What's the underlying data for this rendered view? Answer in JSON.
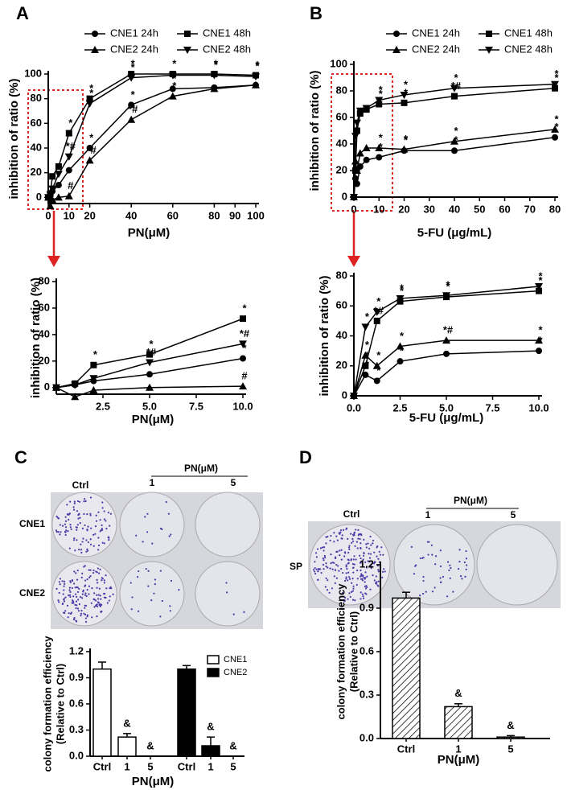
{
  "panels": {
    "a": "A",
    "b": "B",
    "c": "C",
    "d": "D"
  },
  "photos": {
    "c": {
      "treatment": "PN(μM)",
      "ctrl": "Ctrl",
      "dose1": "1",
      "dose2": "5",
      "rows": [
        "CNE1",
        "CNE2"
      ]
    },
    "d": {
      "treatment": "PN(μM)",
      "ctrl": "Ctrl",
      "dose1": "1",
      "dose2": "5",
      "rows": [
        "SP"
      ]
    }
  },
  "chart_data": [
    {
      "type": "line",
      "ylabel": "inhibition of ratio (%)",
      "xlabel": "PN(μM)",
      "legend": "top",
      "x": [
        0,
        1,
        2,
        5,
        10,
        20,
        40,
        60,
        80,
        100
      ],
      "xlim": [
        0,
        100
      ],
      "xticks": [
        0,
        10,
        20,
        40,
        60,
        80,
        90,
        100
      ],
      "ylim": [
        -5,
        100
      ],
      "yticks": [
        0,
        20,
        40,
        60,
        80,
        100
      ],
      "series": [
        {
          "name": "CNE1 24h",
          "color": "#000",
          "marker": "circle",
          "values": [
            0,
            2,
            5,
            10,
            22,
            40,
            75,
            88,
            89,
            91
          ],
          "point_labels": [
            null,
            null,
            null,
            null,
            null,
            "*",
            "*",
            "*",
            "*",
            null
          ]
        },
        {
          "name": "CNE1 48h",
          "color": "#000",
          "marker": "square",
          "values": [
            0,
            3,
            17,
            25,
            52,
            80,
            100,
            100,
            100,
            99
          ],
          "point_labels": [
            null,
            null,
            null,
            null,
            "*",
            "*",
            "*",
            "*",
            "*",
            "*"
          ]
        },
        {
          "name": "CNE2 24h",
          "color": "#000",
          "marker": "triangle",
          "values": [
            0,
            -7,
            -2,
            0,
            1,
            30,
            63,
            82,
            88,
            91
          ],
          "point_labels": [
            null,
            null,
            null,
            null,
            "#",
            "*#",
            "*#",
            "*",
            null,
            null
          ]
        },
        {
          "name": "CNE2 48h",
          "color": "#000",
          "marker": "triangle-down",
          "values": [
            0,
            2,
            7,
            19,
            33,
            76,
            97,
            99,
            99,
            98
          ],
          "point_labels": [
            null,
            null,
            null,
            null,
            "*#",
            "*",
            "*",
            null,
            "*",
            "*"
          ]
        }
      ]
    },
    {
      "type": "line",
      "ylabel": "inhibition of ratio (%)",
      "xlabel": "PN(μM)",
      "x": [
        0,
        1,
        2,
        5,
        10
      ],
      "xlim": [
        0,
        10
      ],
      "xticks": [
        2.5,
        {
          "value": 5,
          "label": "5.0"
        },
        7.5,
        {
          "value": 10,
          "label": "10.0"
        }
      ],
      "ylim": [
        -5,
        80
      ],
      "yticks": [
        0,
        20,
        40,
        60,
        80
      ],
      "series": [
        {
          "name": "CNE1 24h",
          "color": "#000",
          "marker": "circle",
          "values": [
            0,
            2,
            5,
            10,
            22
          ],
          "point_labels": [
            null,
            null,
            null,
            null,
            "*"
          ]
        },
        {
          "name": "CNE1 48h",
          "color": "#000",
          "marker": "square",
          "values": [
            0,
            3,
            17,
            25,
            52
          ],
          "point_labels": [
            null,
            null,
            "*",
            "*",
            "*"
          ]
        },
        {
          "name": "CNE2 24h",
          "color": "#000",
          "marker": "triangle",
          "values": [
            0,
            -7,
            -2,
            0,
            1
          ],
          "point_labels": [
            null,
            null,
            null,
            null,
            "#"
          ]
        },
        {
          "name": "CNE2 48h",
          "color": "#000",
          "marker": "triangle-down",
          "values": [
            0,
            2,
            7,
            19,
            33
          ],
          "point_labels": [
            null,
            null,
            null,
            "*#",
            "*#"
          ]
        }
      ]
    },
    {
      "type": "line",
      "ylabel": "inhibition of ratio (%)",
      "xlabel": "5-FU (μg/mL)",
      "legend": "top",
      "x": [
        0,
        0.625,
        1.25,
        2.5,
        5,
        10,
        20,
        40,
        80
      ],
      "xlim": [
        0,
        80
      ],
      "xticks": [
        0,
        10,
        20,
        30,
        40,
        50,
        60,
        70,
        80
      ],
      "ylim": [
        0,
        100
      ],
      "yticks": [
        0,
        20,
        40,
        60,
        80,
        100
      ],
      "series": [
        {
          "name": "CNE1 24h",
          "color": "#000",
          "marker": "circle",
          "values": [
            0,
            14,
            10,
            23,
            28,
            30,
            35,
            35,
            45
          ],
          "point_labels": [
            null,
            null,
            null,
            null,
            null,
            "*",
            "*",
            "*",
            "*"
          ]
        },
        {
          "name": "CNE1 48h",
          "color": "#000",
          "marker": "square",
          "values": [
            0,
            20,
            50,
            63,
            66,
            70,
            71,
            76,
            82
          ],
          "point_labels": [
            null,
            null,
            null,
            null,
            null,
            "*",
            "*",
            "*#",
            "*"
          ]
        },
        {
          "name": "CNE2 24h",
          "color": "#000",
          "marker": "triangle",
          "values": [
            0,
            27,
            20,
            33,
            37,
            37,
            36,
            42,
            51
          ],
          "point_labels": [
            null,
            null,
            null,
            null,
            null,
            "*",
            "*",
            "*",
            "*"
          ]
        },
        {
          "name": "CNE2 48h",
          "color": "#000",
          "marker": "triangle-down",
          "values": [
            0,
            46,
            56,
            65,
            67,
            73,
            77,
            82,
            85
          ],
          "point_labels": [
            null,
            null,
            null,
            null,
            null,
            "*",
            "*",
            "*",
            "*"
          ]
        }
      ]
    },
    {
      "type": "line",
      "ylabel": "inhibition of ratio (%)",
      "xlabel": "5-FU (μg/mL)",
      "x": [
        0,
        0.625,
        1.25,
        2.5,
        5,
        10
      ],
      "xlim": [
        0,
        10
      ],
      "xticks": [
        {
          "value": 0,
          "label": "0.0"
        },
        2.5,
        {
          "value": 5,
          "label": "5.0"
        },
        7.5,
        {
          "value": 10,
          "label": "10.0"
        }
      ],
      "ylim": [
        0,
        80
      ],
      "yticks": [
        0,
        20,
        40,
        60,
        80
      ],
      "series": [
        {
          "name": "CNE1 24h",
          "color": "#000",
          "marker": "circle",
          "values": [
            0,
            14,
            10,
            23,
            28,
            30
          ],
          "point_labels": [
            null,
            "*",
            "*",
            "*",
            "*",
            "*"
          ]
        },
        {
          "name": "CNE1 48h",
          "color": "#000",
          "marker": "square",
          "values": [
            0,
            20,
            50,
            63,
            66,
            70
          ],
          "point_labels": [
            null,
            "*",
            "*#",
            "*",
            "*",
            "*"
          ]
        },
        {
          "name": "CNE2 24h",
          "color": "#000",
          "marker": "triangle",
          "values": [
            0,
            27,
            20,
            33,
            37,
            37
          ],
          "point_labels": [
            null,
            "*",
            "*",
            "*",
            "*#",
            "*"
          ]
        },
        {
          "name": "CNE2 48h",
          "color": "#000",
          "marker": "triangle-down",
          "values": [
            0,
            46,
            56,
            65,
            67,
            73
          ],
          "point_labels": [
            null,
            "*",
            "*",
            "*",
            "*",
            "*"
          ]
        }
      ]
    },
    {
      "type": "bar",
      "ylabel": [
        "colony formation efficiency",
        "(Relative to Ctrl)"
      ],
      "xlabel": "PN(μM)",
      "legend": "upper right",
      "categories": [
        "Ctrl",
        "1",
        "5"
      ],
      "ylim": [
        0,
        1.2
      ],
      "yticks": [
        {
          "value": 0,
          "label": "0.0"
        },
        0.3,
        0.6,
        0.9,
        1.2
      ],
      "series": [
        {
          "name": "CNE1",
          "color": "#fff",
          "values": [
            1.0,
            0.22,
            0.0
          ],
          "errors": [
            0.08,
            0.04,
            0.0
          ],
          "point_labels": [
            null,
            "&",
            "&"
          ]
        },
        {
          "name": "CNE2",
          "color": "#000",
          "values": [
            1.0,
            0.12,
            0.0
          ],
          "errors": [
            0.04,
            0.1,
            0.0
          ],
          "point_labels": [
            null,
            "&",
            "&"
          ]
        }
      ]
    },
    {
      "type": "bar",
      "ylabel": [
        "colony formation efficiency",
        "(Relative to Ctrl)"
      ],
      "xlabel": "PN(μM)",
      "hatch": true,
      "categories": [
        "Ctrl",
        "1",
        "5"
      ],
      "ylim": [
        0,
        1.2
      ],
      "yticks": [
        {
          "value": 0,
          "label": "0.0"
        },
        0.3,
        0.6,
        0.9,
        1.2
      ],
      "series": [
        {
          "color": "#fff",
          "values": [
            0.97,
            0.22,
            0.01
          ],
          "errors": [
            0.04,
            0.02,
            0.01
          ],
          "point_labels": [
            null,
            "&",
            "&"
          ]
        }
      ]
    }
  ]
}
